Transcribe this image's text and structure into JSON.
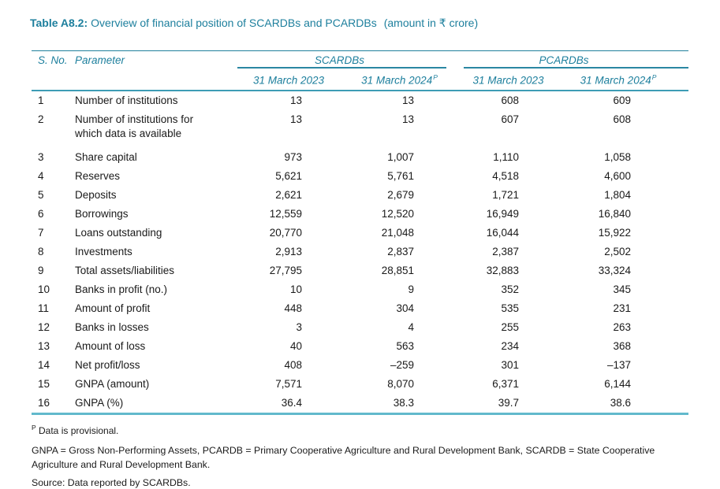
{
  "title": {
    "label": "Table A8.2:",
    "text": "Overview of financial position of SCARDBs and PCARDBs",
    "unit": "(amount in ₹ crore)"
  },
  "table": {
    "headers": {
      "sno": "S. No.",
      "parameter": "Parameter",
      "groups": [
        {
          "label": "SCARDBs"
        },
        {
          "label": "PCARDBs"
        }
      ],
      "subheaders": [
        {
          "text": "31 March 2023"
        },
        {
          "text": "31 March 2024",
          "sup": "P"
        },
        {
          "text": "31 March 2023"
        },
        {
          "text": "31 March 2024",
          "sup": "P"
        }
      ]
    },
    "rows": [
      {
        "sno": "1",
        "parameter": "Number of institutions",
        "values": [
          "13",
          "13",
          "608",
          "609"
        ]
      },
      {
        "sno": "2",
        "parameter": "Number of institutions for which data is available",
        "values": [
          "13",
          "13",
          "607",
          "608"
        ]
      },
      {
        "sno": "3",
        "parameter": "Share capital",
        "values": [
          "973",
          "1,007",
          "1,110",
          "1,058"
        ]
      },
      {
        "sno": "4",
        "parameter": "Reserves",
        "values": [
          "5,621",
          "5,761",
          "4,518",
          "4,600"
        ]
      },
      {
        "sno": "5",
        "parameter": "Deposits",
        "values": [
          "2,621",
          "2,679",
          "1,721",
          "1,804"
        ]
      },
      {
        "sno": "6",
        "parameter": "Borrowings",
        "values": [
          "12,559",
          "12,520",
          "16,949",
          "16,840"
        ]
      },
      {
        "sno": "7",
        "parameter": "Loans outstanding",
        "values": [
          "20,770",
          "21,048",
          "16,044",
          "15,922"
        ]
      },
      {
        "sno": "8",
        "parameter": "Investments",
        "values": [
          "2,913",
          "2,837",
          "2,387",
          "2,502"
        ]
      },
      {
        "sno": "9",
        "parameter": "Total assets/liabilities",
        "values": [
          "27,795",
          "28,851",
          "32,883",
          "33,324"
        ]
      },
      {
        "sno": "10",
        "parameter": "Banks in profit (no.)",
        "values": [
          "10",
          "9",
          "352",
          "345"
        ]
      },
      {
        "sno": "11",
        "parameter": "Amount of profit",
        "values": [
          "448",
          "304",
          "535",
          "231"
        ]
      },
      {
        "sno": "12",
        "parameter": "Banks in losses",
        "values": [
          "3",
          "4",
          "255",
          "263"
        ]
      },
      {
        "sno": "13",
        "parameter": "Amount of loss",
        "values": [
          "40",
          "563",
          "234",
          "368"
        ]
      },
      {
        "sno": "14",
        "parameter": "Net profit/loss",
        "values": [
          "408",
          "–259",
          "301",
          "–137"
        ]
      },
      {
        "sno": "15",
        "parameter": "GNPA (amount)",
        "values": [
          "7,571",
          "8,070",
          "6,371",
          "6,144"
        ]
      },
      {
        "sno": "16",
        "parameter": "GNPA (%)",
        "values": [
          "36.4",
          "38.3",
          "39.7",
          "38.6"
        ]
      }
    ]
  },
  "footnotes": {
    "provisional": {
      "sup": "P",
      "text": " Data is provisional."
    },
    "abbreviations": "GNPA = Gross Non-Performing Assets, PCARDB = Primary Cooperative Agriculture and Rural Development Bank, SCARDB = State Cooperative Agriculture and Rural Development Bank.",
    "source": "Source: Data reported by SCARDBs."
  },
  "colors": {
    "accent_teal": "#1d7f9d",
    "thin_rule_teal": "#20809c",
    "mid_rule_teal": "#3d9cb5",
    "bottom_rule_teal": "#62b9cc",
    "body_text": "#1a1a1a"
  }
}
